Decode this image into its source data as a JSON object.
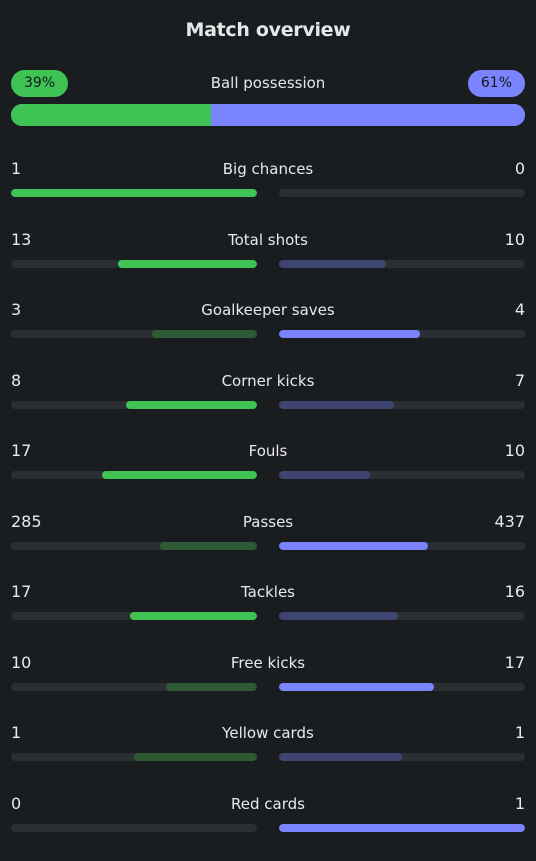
{
  "header": {
    "title": "Match overview"
  },
  "possession": {
    "label": "Ball possession",
    "home_label": "39%",
    "away_label": "61%",
    "home": 39,
    "away": 61
  },
  "colors": {
    "home_strong": "#3ec354",
    "home_weak": "#2d5a35",
    "away_strong": "#7a84ff",
    "away_weak": "#3f4470",
    "track": "#2b2f33",
    "background": "#1a1d20"
  },
  "stats": [
    {
      "label": "Big chances",
      "home": "1",
      "away": "0"
    },
    {
      "label": "Total shots",
      "home": "13",
      "away": "10"
    },
    {
      "label": "Goalkeeper saves",
      "home": "3",
      "away": "4"
    },
    {
      "label": "Corner kicks",
      "home": "8",
      "away": "7"
    },
    {
      "label": "Fouls",
      "home": "17",
      "away": "10"
    },
    {
      "label": "Passes",
      "home": "285",
      "away": "437"
    },
    {
      "label": "Tackles",
      "home": "17",
      "away": "16"
    },
    {
      "label": "Free kicks",
      "home": "10",
      "away": "17"
    },
    {
      "label": "Yellow cards",
      "home": "1",
      "away": "1"
    },
    {
      "label": "Red cards",
      "home": "0",
      "away": "1"
    }
  ]
}
